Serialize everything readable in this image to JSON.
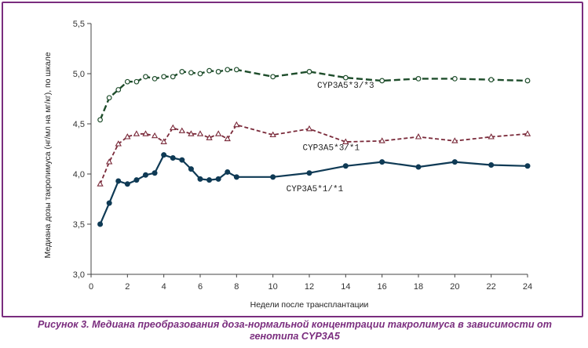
{
  "caption": {
    "line1": "Рисунок 3. Медиана преобразования доза-нормальной концентрации такролимуса в зависимости от",
    "line2": "генотипа CYP3A5"
  },
  "chart_data": {
    "type": "line",
    "xlabel": "Недели после трансплантации",
    "ylabel": "Медиана дозы такролимуса (нг/мл на мг/кг), по шкале",
    "xlim": [
      0,
      24
    ],
    "ylim": [
      3.0,
      5.5
    ],
    "x_ticks": [
      0,
      2,
      4,
      6,
      8,
      10,
      12,
      14,
      16,
      18,
      20,
      22,
      24
    ],
    "y_ticks": [
      3.0,
      3.5,
      4.0,
      4.5,
      5.0,
      5.5
    ],
    "y_tick_labels": [
      "3,0",
      "3,5",
      "4,0",
      "4,5",
      "5,0",
      "5,5"
    ],
    "grid": false,
    "series": [
      {
        "name": "CYP3A5*3/*3",
        "color": "#1e4d2b",
        "line_style": "dashed",
        "marker": "open-circle",
        "x": [
          0.5,
          1,
          1.5,
          2,
          2.5,
          3,
          3.5,
          4,
          4.5,
          5,
          5.5,
          6,
          6.5,
          7,
          7.5,
          8,
          10,
          12,
          14,
          16,
          18,
          20,
          22,
          24
        ],
        "y": [
          4.54,
          4.76,
          4.84,
          4.92,
          4.92,
          4.97,
          4.95,
          4.97,
          4.97,
          5.02,
          5.01,
          5.0,
          5.03,
          5.02,
          5.04,
          5.04,
          4.97,
          5.02,
          4.96,
          4.93,
          4.95,
          4.95,
          4.94,
          4.93
        ]
      },
      {
        "name": "CYP3A5*3/*1",
        "color": "#7a2a3a",
        "line_style": "dashed",
        "marker": "open-triangle",
        "x": [
          0.5,
          1,
          1.5,
          2,
          2.5,
          3,
          3.5,
          4,
          4.5,
          5,
          5.5,
          6,
          6.5,
          7,
          7.5,
          8,
          10,
          12,
          14,
          16,
          18,
          20,
          22,
          24
        ],
        "y": [
          3.9,
          4.12,
          4.3,
          4.37,
          4.4,
          4.4,
          4.38,
          4.32,
          4.46,
          4.43,
          4.4,
          4.4,
          4.36,
          4.4,
          4.35,
          4.49,
          4.39,
          4.45,
          4.32,
          4.33,
          4.37,
          4.33,
          4.37,
          4.4
        ]
      },
      {
        "name": "CYP3A5*1/*1",
        "color": "#0f3a55",
        "line_style": "solid",
        "marker": "filled-circle",
        "x": [
          0.5,
          1,
          1.5,
          2,
          2.5,
          3,
          3.5,
          4,
          4.5,
          5,
          5.5,
          6,
          6.5,
          7,
          7.5,
          8,
          10,
          12,
          14,
          16,
          18,
          20,
          22,
          24
        ],
        "y": [
          3.5,
          3.71,
          3.93,
          3.9,
          3.94,
          3.99,
          4.01,
          4.19,
          4.16,
          4.14,
          4.05,
          3.95,
          3.94,
          3.95,
          4.02,
          3.97,
          3.97,
          4.01,
          4.08,
          4.12,
          4.07,
          4.12,
          4.09,
          4.08
        ]
      }
    ]
  }
}
